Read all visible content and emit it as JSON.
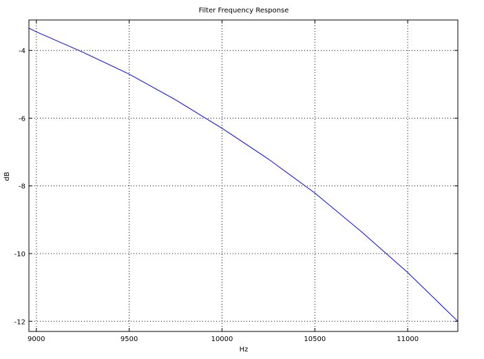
{
  "chart_data": {
    "type": "line",
    "title": "Filter Frequency Response",
    "xlabel": "Hz",
    "ylabel": "dB",
    "xlim": [
      8960,
      11270
    ],
    "ylim": [
      -12.3,
      -3.1
    ],
    "grid": true,
    "x_ticks": [
      9000,
      9500,
      10000,
      10500,
      11000
    ],
    "y_ticks": [
      -4,
      -6,
      -8,
      -10,
      -12
    ],
    "series": [
      {
        "color": "#0000ff",
        "x": [
          8960,
          9000,
          9250,
          9500,
          9750,
          10000,
          10250,
          10500,
          10750,
          11000,
          11270
        ],
        "y": [
          -3.34,
          -3.45,
          -4.05,
          -4.7,
          -5.46,
          -6.3,
          -7.21,
          -8.21,
          -9.35,
          -10.56,
          -12.0
        ]
      }
    ]
  }
}
